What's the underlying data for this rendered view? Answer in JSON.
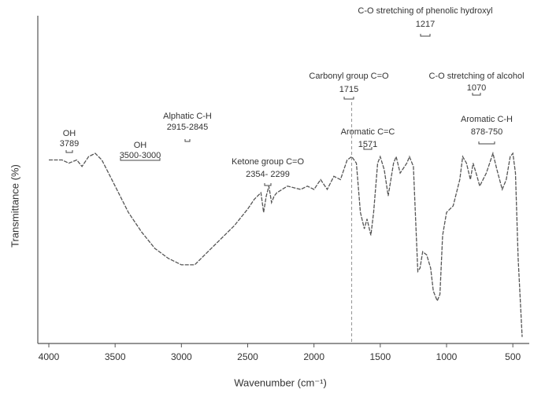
{
  "chart_data": {
    "type": "line",
    "x_label": "Wavenumber (cm⁻¹)",
    "y_label": "Transmittance (%)",
    "xlim": [
      4000,
      400
    ],
    "ylim": [
      0,
      100
    ],
    "xticks": [
      4000,
      3500,
      3000,
      2500,
      2000,
      1500,
      1000,
      500
    ],
    "color": "#555555",
    "reference_line": 1715,
    "x": [
      4000,
      3900,
      3850,
      3789,
      3750,
      3700,
      3650,
      3600,
      3550,
      3500,
      3400,
      3300,
      3200,
      3100,
      3000,
      2900,
      2800,
      2700,
      2600,
      2500,
      2450,
      2400,
      2380,
      2360,
      2340,
      2320,
      2300,
      2280,
      2200,
      2100,
      2050,
      2000,
      1950,
      1900,
      1850,
      1800,
      1750,
      1715,
      1680,
      1650,
      1620,
      1600,
      1571,
      1550,
      1520,
      1500,
      1470,
      1440,
      1400,
      1380,
      1350,
      1300,
      1280,
      1250,
      1217,
      1200,
      1180,
      1150,
      1120,
      1100,
      1070,
      1050,
      1030,
      1000,
      950,
      900,
      878,
      850,
      820,
      800,
      770,
      750,
      700,
      650,
      620,
      580,
      550,
      520,
      500,
      480,
      460,
      430
    ],
    "values": [
      56,
      56,
      55,
      56,
      54,
      57,
      58,
      56,
      52,
      48,
      40,
      34,
      29,
      26,
      24,
      24,
      28,
      32,
      36,
      41,
      44,
      46,
      40,
      45,
      48,
      43,
      45,
      46,
      48,
      47,
      48,
      47,
      50,
      47,
      51,
      50,
      56,
      57,
      55,
      40,
      35,
      38,
      33,
      40,
      55,
      57,
      53,
      45,
      55,
      57,
      52,
      55,
      57,
      54,
      22,
      23,
      28,
      27,
      23,
      16,
      13,
      15,
      33,
      40,
      42,
      50,
      57,
      55,
      50,
      55,
      51,
      48,
      52,
      58,
      53,
      47,
      50,
      57,
      58,
      52,
      26,
      2
    ],
    "annotations": [
      {
        "text": "OH",
        "wavenumber": "3789"
      },
      {
        "text": "OH",
        "wavenumber": "3500-3000"
      },
      {
        "text": "Alphatic C-H",
        "wavenumber": "2915-2845"
      },
      {
        "text": "Ketone group C=O",
        "wavenumber": "2354- 2299"
      },
      {
        "text": "Carbonyl group C=O",
        "wavenumber": "1715"
      },
      {
        "text": "C-O stretching of phenolic hydroxyl",
        "wavenumber": "1217"
      },
      {
        "text": "Aromatic C=C",
        "wavenumber": "1571"
      },
      {
        "text": "C-O stretching of alcohol",
        "wavenumber": "1070"
      },
      {
        "text": "Aromatic C-H",
        "wavenumber": "878-750"
      }
    ]
  }
}
